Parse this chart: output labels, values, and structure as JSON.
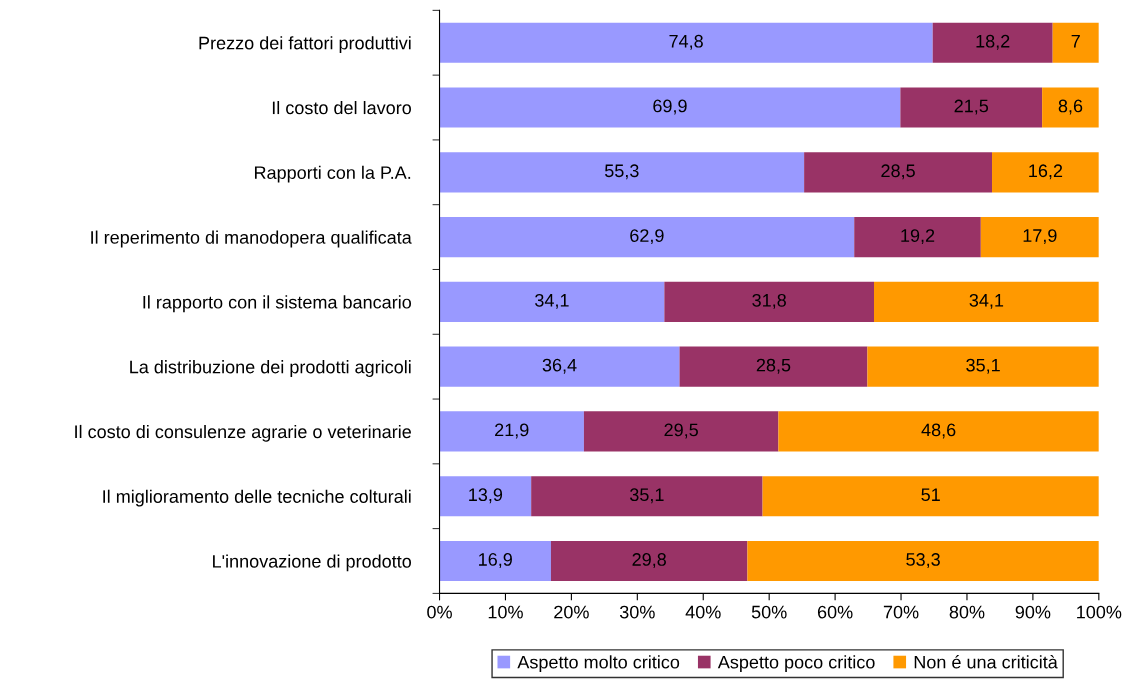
{
  "chart_data": {
    "type": "bar",
    "orientation": "horizontal",
    "stacked": true,
    "categories": [
      "Prezzo dei fattori produttivi",
      "Il costo del lavoro",
      "Rapporti con la P.A.",
      "Il reperimento di manodopera qualificata",
      "Il rapporto con il sistema bancario",
      "La distribuzione dei prodotti agricoli",
      "Il costo di consulenze agrarie o veterinarie",
      "Il miglioramento delle tecniche colturali",
      "L'innovazione di prodotto"
    ],
    "series": [
      {
        "name": "Aspetto molto critico",
        "color": "#9999ff",
        "values": [
          74.8,
          69.9,
          55.3,
          62.9,
          34.1,
          36.4,
          21.9,
          13.9,
          16.9
        ],
        "value_labels": [
          "74,8",
          "69,9",
          "55,3",
          "62,9",
          "34,1",
          "36,4",
          "21,9",
          "13,9",
          "16,9"
        ]
      },
      {
        "name": "Aspetto poco critico",
        "color": "#993366",
        "values": [
          18.2,
          21.5,
          28.5,
          19.2,
          31.8,
          28.5,
          29.5,
          35.1,
          29.8
        ],
        "value_labels": [
          "18,2",
          "21,5",
          "28,5",
          "19,2",
          "31,8",
          "28,5",
          "29,5",
          "35,1",
          "29,8"
        ]
      },
      {
        "name": "Non é una criticità",
        "color": "#ff9900",
        "values": [
          7,
          8.6,
          16.2,
          17.9,
          34.1,
          35.1,
          48.6,
          51,
          53.3
        ],
        "value_labels": [
          "7",
          "8,6",
          "16,2",
          "17,9",
          "34,1",
          "35,1",
          "48,6",
          "51",
          "53,3"
        ]
      }
    ],
    "xlim": [
      0,
      100
    ],
    "xticks": [
      {
        "value": 0,
        "label": "0%"
      },
      {
        "value": 10,
        "label": "10%"
      },
      {
        "value": 20,
        "label": "20%"
      },
      {
        "value": 30,
        "label": "30%"
      },
      {
        "value": 40,
        "label": "40%"
      },
      {
        "value": 50,
        "label": "50%"
      },
      {
        "value": 60,
        "label": "60%"
      },
      {
        "value": 70,
        "label": "70%"
      },
      {
        "value": 80,
        "label": "80%"
      },
      {
        "value": 90,
        "label": "90%"
      },
      {
        "value": 100,
        "label": "100%"
      }
    ],
    "grid": false,
    "legend": "bottom"
  }
}
